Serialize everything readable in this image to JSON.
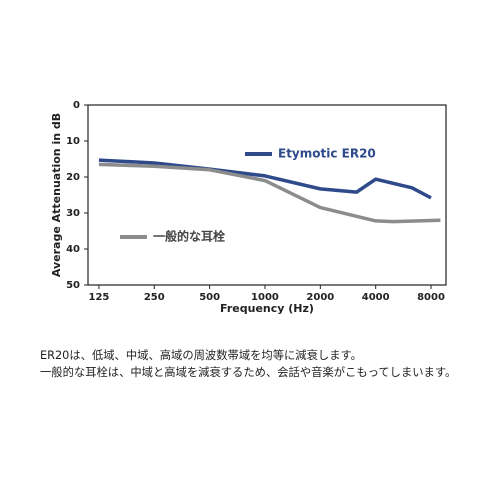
{
  "chart_data": {
    "type": "line",
    "xlabel": "Frequency (Hz)",
    "ylabel": "Average Attenuation in dB",
    "log_x": true,
    "y_inverted": true,
    "xlim": [
      109,
      9650
    ],
    "xticks": [
      125,
      250,
      500,
      1000,
      2000,
      4000,
      8000
    ],
    "ylim": [
      0,
      50
    ],
    "yticks": [
      0,
      10,
      20,
      30,
      40,
      50
    ],
    "series": [
      {
        "name": "Etymotic ER20",
        "color": "#2e4a8a",
        "x": [
          125,
          250,
          500,
          1000,
          2000,
          3150,
          4000,
          6300,
          8000
        ],
        "values": [
          15.3,
          16.1,
          17.8,
          19.7,
          23.3,
          24.2,
          20.6,
          23,
          25.8
        ]
      },
      {
        "name": "一般的な耳栓",
        "color": "#8c8c8c",
        "x": [
          125,
          250,
          500,
          1000,
          2000,
          4000,
          5000,
          9000
        ],
        "values": [
          16.5,
          17,
          18,
          21,
          28.5,
          32.2,
          32.4,
          32
        ]
      }
    ]
  },
  "caption": {
    "lines": [
      "ER20は、低域、中域、高域の周波数帯域を均等に減衰します。",
      "一般的な耳栓は、中域と高域を減衰するため、会話や音楽がこもってしまいます。"
    ]
  }
}
